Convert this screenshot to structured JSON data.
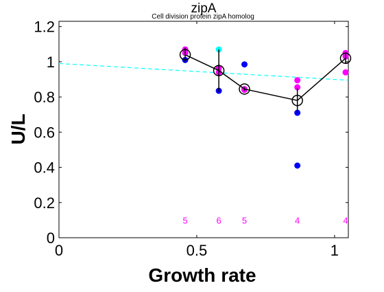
{
  "chart_data": {
    "type": "scatter",
    "title": "zipA",
    "subtitle": "Cell division protein zipA homolog",
    "xlabel": "Growth rate",
    "ylabel": "U/L",
    "xlim": [
      0,
      1.05
    ],
    "ylim": [
      0,
      1.23
    ],
    "x_ticks": [
      0,
      0.5,
      1
    ],
    "x_tick_labels": [
      "0",
      "0.5",
      "1"
    ],
    "y_ticks": [
      0,
      0.2,
      0.4,
      0.6,
      0.8,
      1,
      1.2
    ],
    "y_tick_labels": [
      "0",
      "0.2",
      "0.4",
      "0.6",
      "0.8",
      "1",
      "1.2"
    ],
    "grid": false,
    "colors": {
      "magenta": "#ff00ff",
      "blue": "#0000ff",
      "cyan": "#00ffff",
      "mean": "#000000",
      "fit": "#00ffff"
    },
    "series": [
      {
        "color": "magenta",
        "points": [
          {
            "x": 0.458,
            "y": 1.07
          },
          {
            "x": 0.458,
            "y": 1.05
          },
          {
            "x": 0.58,
            "y": 0.965
          },
          {
            "x": 0.58,
            "y": 0.94
          },
          {
            "x": 0.673,
            "y": 0.845
          },
          {
            "x": 0.673,
            "y": 0.84
          },
          {
            "x": 0.865,
            "y": 0.895
          },
          {
            "x": 0.865,
            "y": 0.855
          },
          {
            "x": 1.04,
            "y": 1.05
          },
          {
            "x": 1.04,
            "y": 1.03
          },
          {
            "x": 1.04,
            "y": 0.94
          }
        ]
      },
      {
        "color": "blue",
        "points": [
          {
            "x": 0.458,
            "y": 1.01
          },
          {
            "x": 0.58,
            "y": 0.835
          },
          {
            "x": 0.673,
            "y": 0.985
          },
          {
            "x": 0.865,
            "y": 0.71
          },
          {
            "x": 0.865,
            "y": 0.41
          }
        ]
      },
      {
        "color": "cyan",
        "points": [
          {
            "x": 0.58,
            "y": 1.07
          }
        ]
      }
    ],
    "mean_line": {
      "x": [
        0.458,
        0.58,
        0.673,
        0.865,
        1.04
      ],
      "y": [
        1.04,
        0.95,
        0.845,
        0.78,
        1.02
      ],
      "err": [
        0.04,
        0.12,
        0.01,
        0.07,
        0.03
      ]
    },
    "fit_line": {
      "x": [
        0,
        1.05
      ],
      "y": [
        0.99,
        0.895
      ]
    },
    "counts": [
      {
        "x": 0.458,
        "label": "5"
      },
      {
        "x": 0.58,
        "label": "6"
      },
      {
        "x": 0.673,
        "label": "5"
      },
      {
        "x": 0.865,
        "label": "4"
      },
      {
        "x": 1.04,
        "label": "4"
      }
    ]
  }
}
